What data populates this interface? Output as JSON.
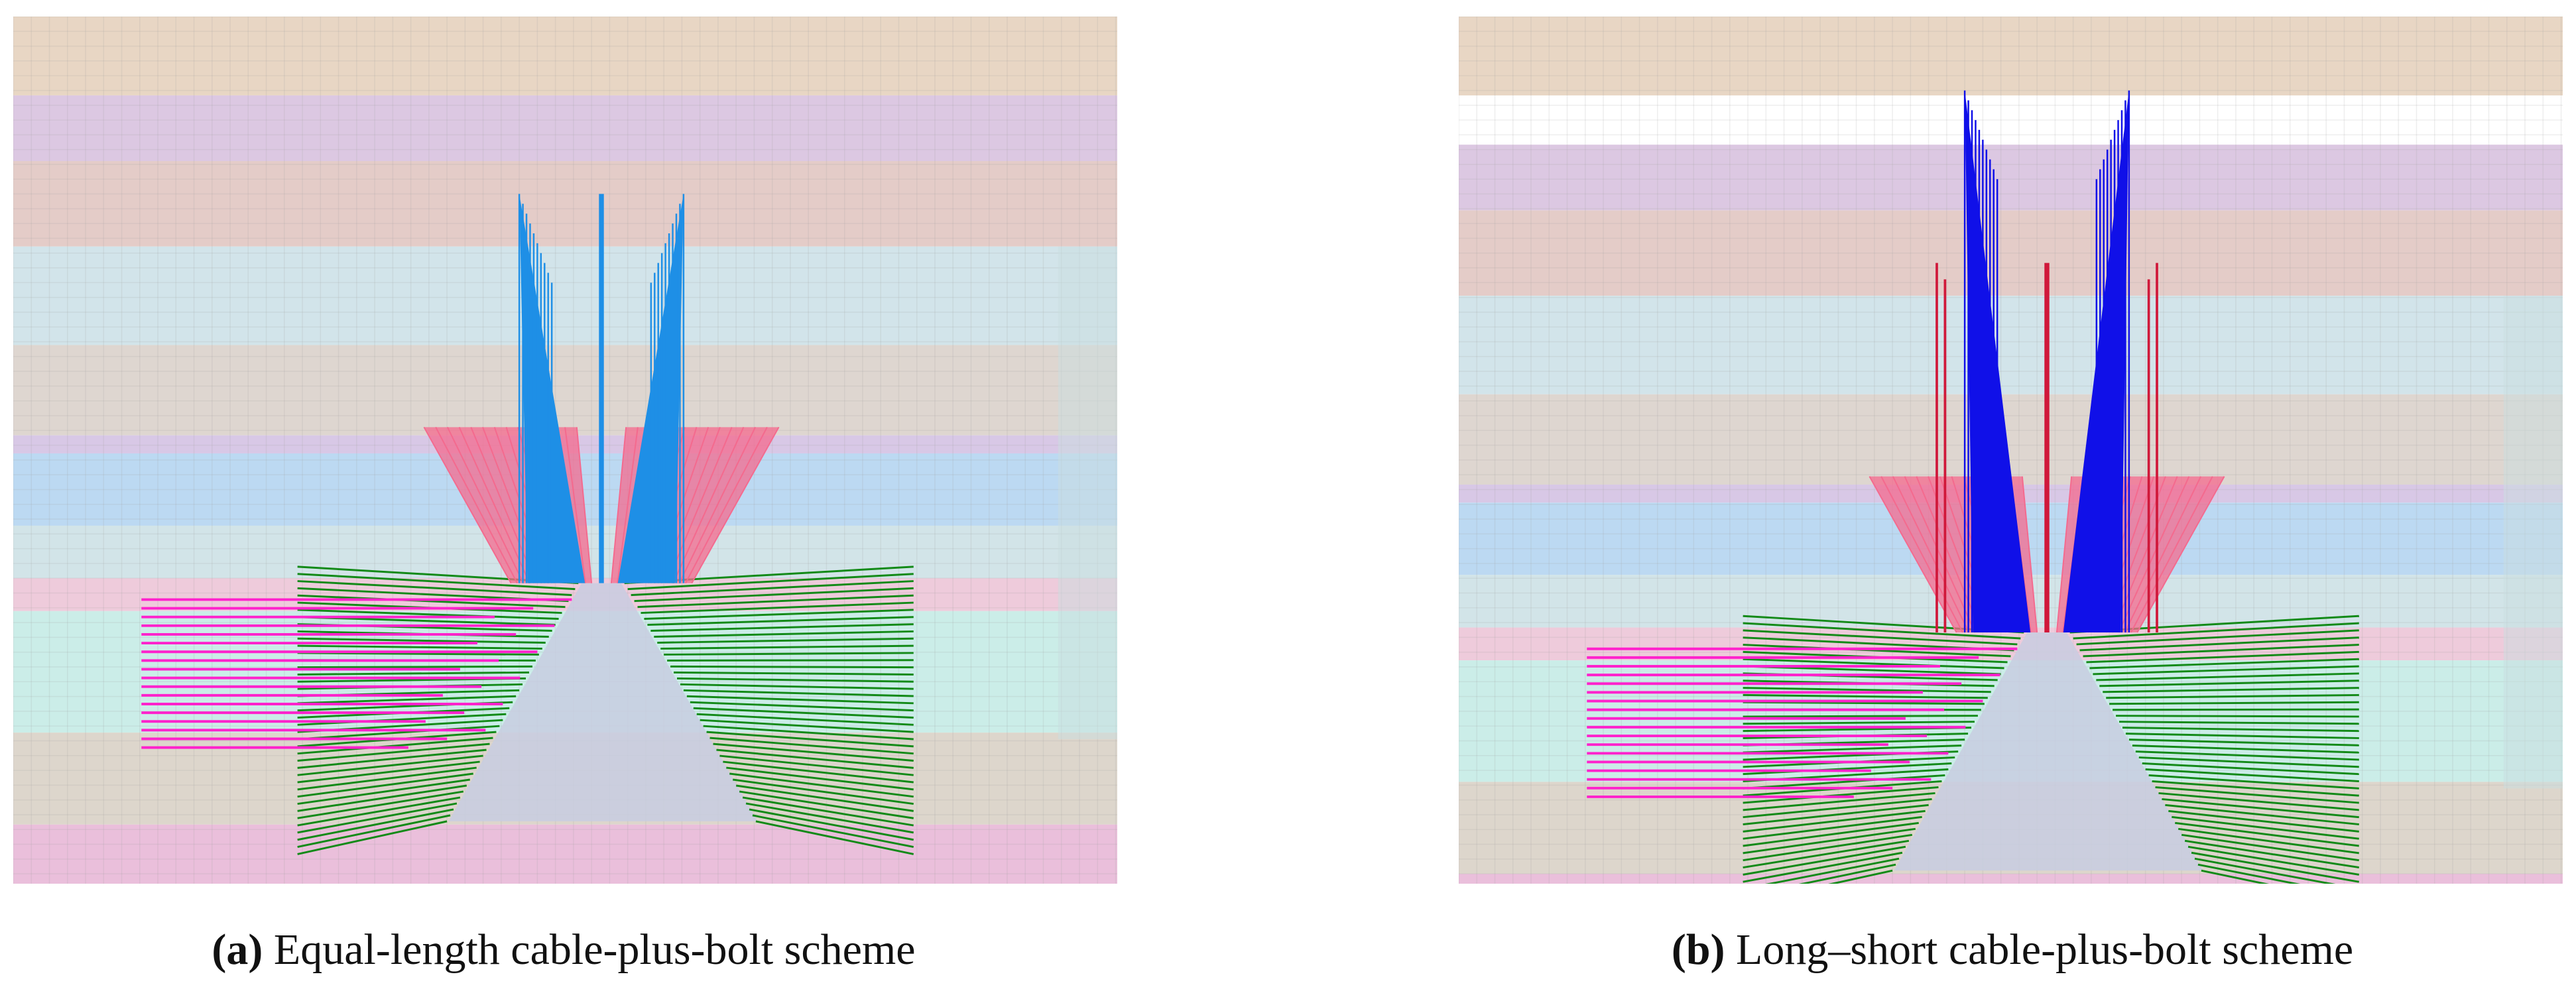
{
  "figure": {
    "panels": [
      {
        "label": "(a)",
        "caption": "Equal-length cable-plus-bolt scheme"
      },
      {
        "label": "(b)",
        "caption": "Long–short cable-plus-bolt scheme"
      }
    ]
  }
}
